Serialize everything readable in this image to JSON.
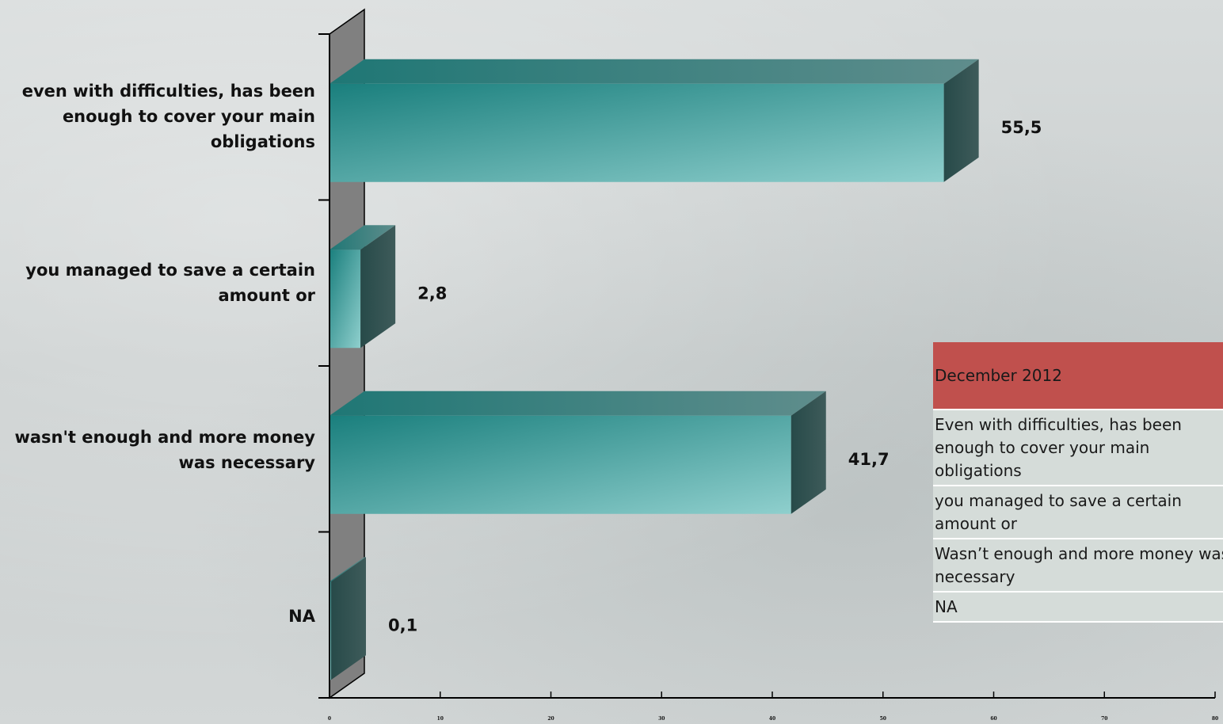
{
  "chart_data": {
    "type": "bar",
    "orientation": "horizontal",
    "categories": [
      "even with difficulties, has been enough to cover your main obligations",
      "you managed to save a certain amount or",
      "wasn't enough and more money was necessary",
      "NA"
    ],
    "values": [
      55.5,
      2.8,
      41.7,
      0.1
    ],
    "data_labels": [
      "55,5",
      "2,8",
      "41,7",
      "0,1"
    ],
    "xlim": [
      0,
      80
    ],
    "xticks": [
      "0",
      "10",
      "20",
      "30",
      "40",
      "50",
      "60",
      "70",
      "80"
    ],
    "bar_color": "#3a9a98",
    "grid": false
  },
  "legend_table": {
    "header": "December 2012",
    "rows": [
      "Even with difficulties, has been enough to cover your main obligations",
      "you managed to save a certain amount or",
      "Wasn’t enough and more money was necessary",
      "NA"
    ]
  },
  "colors": {
    "header_bg": "#c0504d",
    "row_bg": "#d5dcd9",
    "wall": "#808080"
  }
}
